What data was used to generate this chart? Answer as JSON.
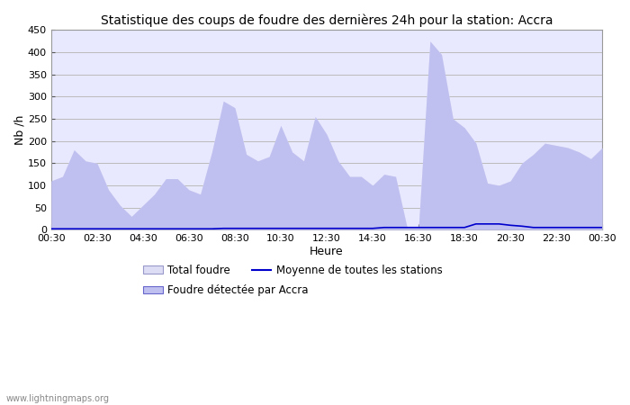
{
  "title": "Statistique des coups de foudre des dernières 24h pour la station: Accra",
  "xlabel": "Heure",
  "ylabel": "Nb /h",
  "ylim": [
    0,
    450
  ],
  "yticks": [
    0,
    50,
    100,
    150,
    200,
    250,
    300,
    350,
    400,
    450
  ],
  "xtick_labels": [
    "00:30",
    "02:30",
    "04:30",
    "06:30",
    "08:30",
    "10:30",
    "12:30",
    "14:30",
    "16:30",
    "18:30",
    "20:30",
    "22:30",
    "00:30"
  ],
  "total_foudre_x": [
    0,
    1,
    2,
    3,
    4,
    5,
    6,
    7,
    8,
    9,
    10,
    11,
    12,
    13,
    14,
    15,
    16,
    17,
    18,
    19,
    20,
    21,
    22,
    23,
    24,
    25,
    26,
    27,
    28,
    29,
    30,
    31,
    32,
    33,
    34,
    35,
    36,
    37,
    38,
    39,
    40,
    41,
    42,
    43,
    44,
    45,
    46,
    47,
    48
  ],
  "total_foudre_y": [
    110,
    120,
    180,
    155,
    150,
    90,
    55,
    30,
    55,
    80,
    115,
    115,
    90,
    80,
    175,
    290,
    275,
    170,
    155,
    165,
    235,
    175,
    155,
    255,
    215,
    155,
    120,
    120,
    100,
    125,
    120,
    5,
    5,
    425,
    395,
    250,
    230,
    195,
    105,
    100,
    110,
    150,
    170,
    195,
    190,
    185,
    175,
    160,
    185
  ],
  "foudre_accra_y": [
    110,
    120,
    180,
    155,
    150,
    90,
    55,
    30,
    55,
    80,
    115,
    115,
    90,
    80,
    175,
    290,
    275,
    170,
    155,
    165,
    235,
    175,
    155,
    255,
    215,
    155,
    120,
    120,
    100,
    125,
    120,
    5,
    5,
    425,
    395,
    250,
    230,
    195,
    105,
    100,
    110,
    150,
    170,
    195,
    190,
    185,
    175,
    160,
    185
  ],
  "moyenne_y": [
    2,
    2,
    2,
    2,
    2,
    2,
    2,
    2,
    2,
    2,
    2,
    2,
    2,
    2,
    2,
    3,
    3,
    3,
    3,
    3,
    3,
    3,
    3,
    3,
    3,
    3,
    3,
    3,
    3,
    5,
    5,
    5,
    5,
    5,
    5,
    5,
    5,
    13,
    13,
    13,
    10,
    8,
    5,
    5,
    5,
    5,
    5,
    5,
    5
  ],
  "total_foudre_fill": "#ddddf5",
  "foudre_accra_fill": "#c0c0f0",
  "bg_fill": "#e8e8ff",
  "moyenne_color": "#0000cc",
  "grid_color": "#bbbbbb",
  "watermark": "www.lightningmaps.org",
  "title_fontsize": 10,
  "axis_fontsize": 9,
  "tick_fontsize": 8,
  "legend_fontsize": 8.5
}
